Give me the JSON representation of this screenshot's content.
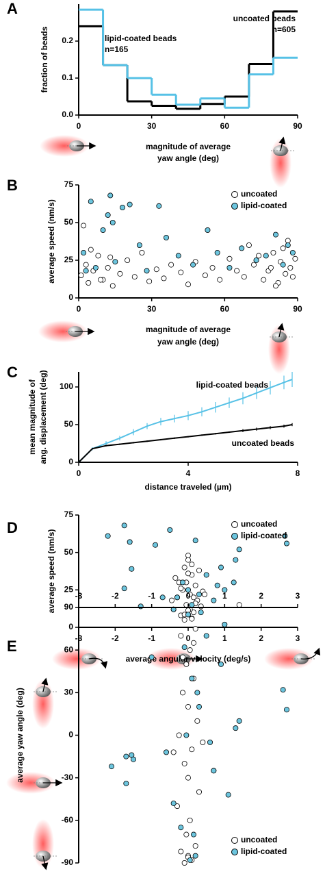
{
  "chart_data": [
    {
      "panel": "A",
      "type": "histogram",
      "ylabel": "fraction of beads",
      "xlabel": [
        "magnitude of average",
        "yaw angle  (deg)"
      ],
      "bins": [
        0,
        10,
        20,
        30,
        40,
        50,
        60,
        70,
        80,
        90
      ],
      "xlim": [
        0,
        90
      ],
      "xticks": [
        0,
        30,
        60,
        90
      ],
      "ylim": [
        0,
        0.3
      ],
      "yticks": [
        {
          "value": 0,
          "label": "0.0"
        },
        0.1,
        0.2
      ],
      "annotations": [
        "uncoated beads",
        "n=605",
        "lipid-coated beads",
        "n=165"
      ],
      "series": [
        {
          "name": "uncoated beads",
          "color": "#000000",
          "values": [
            0.24,
            0.135,
            0.037,
            0.025,
            0.017,
            0.03,
            0.05,
            0.138,
            0.28
          ]
        },
        {
          "name": "lipid-coated beads",
          "color": "#56c1e6",
          "values": [
            0.285,
            0.135,
            0.1,
            0.055,
            0.028,
            0.045,
            0.02,
            0.11,
            0.155
          ]
        }
      ]
    },
    {
      "panel": "B",
      "type": "scatter",
      "ylabel": "average speed (nm/s)",
      "xlabel": [
        "magnitude of average",
        "yaw angle (deg)"
      ],
      "xlim": [
        0,
        90
      ],
      "xticks": [
        0,
        30,
        60,
        90
      ],
      "ylim": [
        0,
        75
      ],
      "yticks": [
        0,
        25,
        50,
        75
      ],
      "legend": "top-right",
      "series": [
        {
          "name": "uncoated",
          "color": "#ffffff",
          "x": [
            1,
            3,
            4,
            6,
            8,
            10,
            12,
            14,
            17,
            20,
            23,
            26,
            29,
            32,
            35,
            38,
            42,
            45,
            48,
            52,
            55,
            58,
            62,
            65,
            68,
            70,
            72,
            74,
            76,
            78,
            80,
            82,
            83,
            85,
            86,
            87,
            88,
            89,
            2,
            5,
            9,
            13,
            79,
            84,
            81
          ],
          "values": [
            15,
            22,
            10,
            18,
            28,
            12,
            20,
            8,
            16,
            25,
            14,
            30,
            11,
            19,
            13,
            22,
            17,
            9,
            24,
            15,
            20,
            12,
            26,
            18,
            14,
            35,
            22,
            28,
            12,
            18,
            30,
            10,
            24,
            16,
            38,
            20,
            14,
            26,
            48,
            32,
            12,
            27,
            20,
            33,
            8
          ]
        },
        {
          "name": "lipid-coated",
          "color": "#6cc5de",
          "x": [
            2,
            5,
            7,
            10,
            12,
            13,
            15,
            18,
            21,
            25,
            28,
            33,
            36,
            41,
            47,
            53,
            57,
            62,
            67,
            73,
            77,
            81,
            84,
            86,
            88,
            3,
            14
          ],
          "values": [
            30,
            64,
            20,
            45,
            55,
            68,
            24,
            60,
            62,
            35,
            18,
            61,
            40,
            28,
            22,
            45,
            30,
            20,
            33,
            25,
            28,
            42,
            22,
            35,
            30,
            18,
            50
          ]
        }
      ]
    },
    {
      "panel": "C",
      "type": "line",
      "ylabel": [
        "mean magnitude of",
        "ang. displacement (deg)"
      ],
      "xlabel": "distance traveled (µm)",
      "xlim": [
        0,
        8
      ],
      "xticks": [
        0,
        4,
        8
      ],
      "ylim": [
        0,
        120
      ],
      "yticks": [
        0,
        50,
        100
      ],
      "annotations": [
        "lipid-coated beads",
        "uncoated beads"
      ],
      "x": [
        0,
        0.5,
        1,
        1.5,
        2,
        2.5,
        3,
        3.5,
        4,
        4.5,
        5,
        5.5,
        6,
        6.5,
        7,
        7.5,
        7.8
      ],
      "series": [
        {
          "name": "lipid-coated beads",
          "color": "#56c1e6",
          "values": [
            0,
            18,
            25,
            32,
            40,
            48,
            54,
            58,
            62,
            67,
            73,
            79,
            85,
            92,
            99,
            106,
            110
          ],
          "errors": [
            0,
            2,
            3,
            3,
            4,
            4,
            5,
            5,
            6,
            6,
            7,
            7,
            8,
            8,
            9,
            9,
            10
          ]
        },
        {
          "name": "uncoated beads",
          "color": "#000000",
          "values": [
            0,
            18,
            22,
            24,
            26,
            28,
            30,
            32,
            34,
            36,
            38,
            40,
            42,
            44,
            46,
            48,
            50
          ],
          "errors": [
            0,
            1,
            1,
            1,
            1,
            1,
            1,
            1,
            1,
            1,
            1,
            1,
            2,
            2,
            2,
            2,
            2
          ]
        }
      ]
    },
    {
      "panel": "D",
      "type": "scatter",
      "ylabel": "average speed (nm/s)",
      "xlabel": "average angular velocity (deg/s)",
      "xlim": [
        -3,
        3
      ],
      "xticks": [
        -3,
        -2,
        -1,
        0,
        1,
        2,
        3
      ],
      "ylim": [
        0,
        75
      ],
      "yticks": [
        0,
        25,
        50,
        75
      ],
      "legend": "top-right",
      "series": [
        {
          "name": "uncoated",
          "color": "#ffffff",
          "x": [
            -0.4,
            -0.3,
            -0.25,
            -0.2,
            -0.15,
            -0.1,
            -0.05,
            0,
            0.05,
            0.1,
            0.15,
            0.2,
            0.25,
            0.3,
            0.35,
            0.4,
            -0.35,
            -0.1,
            0,
            0.1,
            0.2,
            -0.2,
            0.05,
            -0.05,
            0.15,
            0.45,
            -0.45,
            1.4,
            0,
            0.1
          ],
          "values": [
            12,
            20,
            30,
            8,
            25,
            40,
            15,
            45,
            22,
            35,
            10,
            28,
            18,
            38,
            14,
            24,
            33,
            5,
            48,
            42,
            16,
            26,
            12,
            30,
            20,
            22,
            18,
            15,
            36,
            6
          ]
        },
        {
          "name": "lipid-coated",
          "color": "#6cc5de",
          "x": [
            -2.2,
            -1.75,
            -1.6,
            -1.55,
            -1.75,
            -1.3,
            -0.9,
            -0.5,
            -0.3,
            -0.15,
            0,
            0.1,
            0.2,
            0.3,
            0.5,
            0.7,
            0.9,
            1.0,
            1.25,
            1.3,
            1.4,
            2.65,
            2.7,
            -0.4,
            0.35,
            -0.7,
            0.8
          ],
          "values": [
            61,
            68,
            57,
            39,
            26,
            14,
            55,
            65,
            20,
            30,
            25,
            15,
            58,
            22,
            35,
            18,
            40,
            25,
            30,
            45,
            52,
            61,
            56,
            12,
            10,
            20,
            28
          ]
        }
      ]
    },
    {
      "panel": "E",
      "type": "scatter",
      "ylabel": "average yaw angle (deg)",
      "xlim": [
        -3,
        3
      ],
      "xticks": [
        -3,
        -2,
        -1,
        0,
        1,
        2,
        3
      ],
      "ylim": [
        -90,
        90
      ],
      "yticks": [
        90,
        60,
        30,
        0,
        -30,
        -60,
        -90
      ],
      "legend": "bottom-right",
      "series": [
        {
          "name": "uncoated",
          "color": "#ffffff",
          "x": [
            0,
            -0.1,
            0.1,
            0.2,
            -0.2,
            0.05,
            -0.05,
            0.15,
            -0.15,
            0,
            0.25,
            -0.25,
            0.1,
            -0.1,
            0,
            0.3,
            -0.3,
            0.05,
            -0.05,
            0.2,
            -0.2,
            0,
            0.1,
            -0.1,
            0.4,
            -0.4,
            0.7,
            0.15,
            -0.15,
            0
          ],
          "values": [
            88,
            85,
            82,
            75,
            70,
            60,
            50,
            40,
            30,
            20,
            10,
            0,
            -10,
            -20,
            -30,
            -40,
            -50,
            -60,
            -70,
            -78,
            -82,
            -85,
            -88,
            -90,
            -5,
            -12,
            -25,
            65,
            55,
            -86
          ]
        },
        {
          "name": "lipid-coated",
          "color": "#6cc5de",
          "x": [
            -2.1,
            -1.7,
            -1.55,
            -1.5,
            -1.7,
            -1.0,
            -0.6,
            -0.4,
            -0.2,
            0,
            0.1,
            0.2,
            0.3,
            0.5,
            0.7,
            0.9,
            1.0,
            1.3,
            1.4,
            2.6,
            2.7,
            0.05,
            -0.05,
            0.15,
            -0.1,
            0.25,
            0.6,
            1.1
          ],
          "values": [
            -22,
            -15,
            -14,
            -17,
            -34,
            55,
            -12,
            -48,
            -65,
            85,
            40,
            -85,
            20,
            70,
            -25,
            50,
            78,
            5,
            10,
            32,
            18,
            -88,
            0,
            -70,
            62,
            30,
            -5,
            -42
          ]
        }
      ]
    }
  ]
}
